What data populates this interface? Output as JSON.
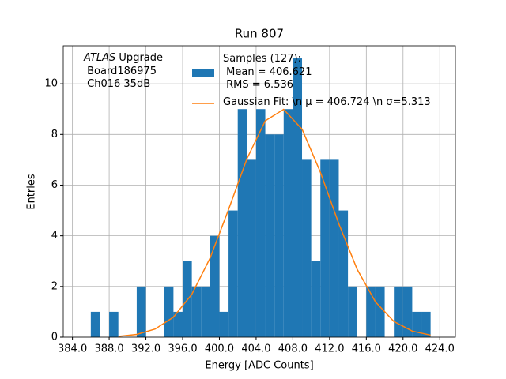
{
  "chart_data": {
    "type": "histogram",
    "title": "Run 807",
    "xlabel": "Energy [ADC Counts]",
    "ylabel": "Entries",
    "annotation": [
      "ATLAS",
      "Upgrade",
      "Board186975",
      "Ch016 35dB"
    ],
    "bins": [
      386,
      387,
      388,
      389,
      390,
      391,
      392,
      393,
      394,
      395,
      396,
      397,
      398,
      399,
      400,
      401,
      402,
      403,
      404,
      405,
      406,
      407,
      408,
      409,
      410,
      411,
      412,
      413,
      414,
      415,
      416,
      417,
      418,
      419,
      420,
      421,
      422,
      423
    ],
    "series": [
      {
        "name": "Samples (127):\n Mean = 406.621\n RMS = 6.536",
        "color": "#1f77b4",
        "type": "histogram",
        "values": [
          1,
          0,
          1,
          0,
          0,
          2,
          0,
          0,
          2,
          1,
          3,
          2,
          2,
          4,
          1,
          5,
          9,
          7,
          9,
          8,
          8,
          9,
          11,
          7,
          3,
          7,
          7,
          5,
          2,
          0,
          2,
          2,
          0,
          2,
          2,
          1,
          1
        ]
      },
      {
        "name": "Gaussian Fit: \\n μ = 406.724 \\n σ=5.313",
        "color": "#ff7f0e",
        "type": "line",
        "x": [
          389,
          391,
          393,
          395,
          397,
          399,
          401,
          403,
          405,
          407,
          409,
          411,
          413,
          415,
          417,
          419,
          421,
          423
        ],
        "values": [
          0.03,
          0.11,
          0.32,
          0.79,
          1.69,
          3.13,
          5.04,
          7.04,
          8.54,
          8.99,
          8.21,
          6.51,
          4.48,
          2.68,
          1.39,
          0.62,
          0.24,
          0.08
        ]
      }
    ],
    "xlim": [
      383,
      425.7
    ],
    "ylim": [
      0,
      11.5
    ],
    "xticks": [
      {
        "value": 384,
        "label": "384.0"
      },
      {
        "value": 388,
        "label": "388.0"
      },
      {
        "value": 392,
        "label": "392.0"
      },
      {
        "value": 396,
        "label": "396.0"
      },
      {
        "value": 400,
        "label": "400.0"
      },
      {
        "value": 404,
        "label": "404.0"
      },
      {
        "value": 408,
        "label": "408.0"
      },
      {
        "value": 412,
        "label": "412.0"
      },
      {
        "value": 416,
        "label": "416.0"
      },
      {
        "value": 420,
        "label": "420.0"
      },
      {
        "value": 424,
        "label": "424.0"
      }
    ],
    "yticks": [
      0,
      2,
      4,
      6,
      8,
      10
    ],
    "grid": true
  }
}
